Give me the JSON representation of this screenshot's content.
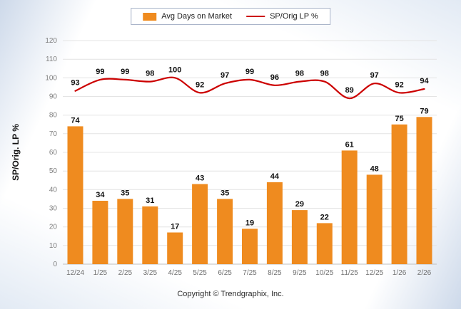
{
  "legend": {
    "bar_label": "Avg Days on Market",
    "line_label": "SP/Orig LP %"
  },
  "ylabel": "SP/Orig. LP %",
  "footer": "Copyright © Trendgraphix, Inc.",
  "colors": {
    "bar": "#EF8B1F",
    "line": "#CC0000"
  },
  "chart_data": {
    "type": "bar",
    "categories": [
      "12/24",
      "1/25",
      "2/25",
      "3/25",
      "4/25",
      "5/25",
      "6/25",
      "7/25",
      "8/25",
      "9/25",
      "10/25",
      "11/25",
      "12/25",
      "1/26",
      "2/26"
    ],
    "series": [
      {
        "name": "Avg Days on Market",
        "type": "bar",
        "values": [
          74,
          34,
          35,
          31,
          17,
          43,
          35,
          19,
          44,
          29,
          22,
          61,
          48,
          75,
          79
        ]
      },
      {
        "name": "SP/Orig LP %",
        "type": "line",
        "values": [
          93,
          99,
          99,
          98,
          100,
          92,
          97,
          99,
          96,
          98,
          98,
          89,
          97,
          92,
          94
        ]
      }
    ],
    "title": "",
    "xlabel": "",
    "ylabel": "SP/Orig. LP %",
    "ylim": [
      0,
      120
    ],
    "ytick_step": 10,
    "grid": true,
    "legend_position": "top",
    "data_labels": true
  }
}
